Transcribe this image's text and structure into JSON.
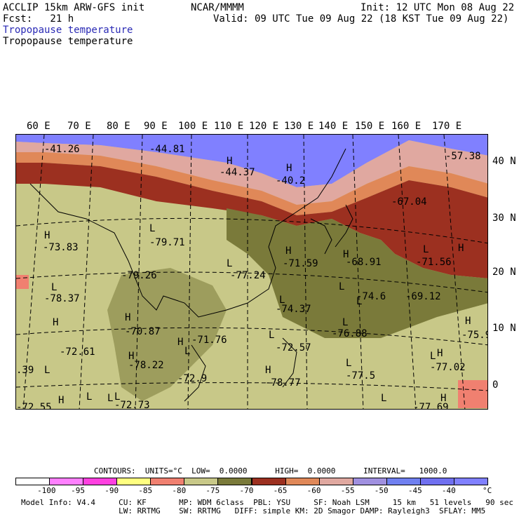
{
  "header": {
    "model_line": "ACCLIP 15km ARW-GFS init",
    "fcst_line": "Fcst:   21 h",
    "center_line": "NCAR/MMMM",
    "init_line": "Init: 12 UTC Mon 08 Aug 22",
    "valid_line": "Valid: 09 UTC Tue 09 Aug 22 (18 KST Tue 09 Aug 22)",
    "field_title_1": "Tropopause temperature",
    "field_title_2": "Tropopause temperature"
  },
  "map": {
    "lon_labels": [
      "60 E",
      "70 E",
      "80 E",
      "90 E",
      "100 E",
      "110 E",
      "120 E",
      "130 E",
      "140 E",
      "150 E",
      "160 E",
      "170 E"
    ],
    "lat_labels": [
      "40 N",
      "30 N",
      "20 N",
      "10 N",
      "0"
    ],
    "contour_values": [
      {
        "text": "-41.26"
      },
      {
        "text": "-44.81"
      },
      {
        "text": "-44.37"
      },
      {
        "text": "-40.2"
      },
      {
        "text": "-57.38"
      },
      {
        "text": "-67.04"
      },
      {
        "text": "-73.83"
      },
      {
        "text": "-79.71"
      },
      {
        "text": "-79.26"
      },
      {
        "text": "-77.24"
      },
      {
        "text": "-71.59"
      },
      {
        "text": "-68.91"
      },
      {
        "text": "-71.56"
      },
      {
        "text": "-78.37"
      },
      {
        "text": "-74.6"
      },
      {
        "text": "-69.12"
      },
      {
        "text": "-74.37"
      },
      {
        "text": "-70.87"
      },
      {
        "text": "-71.76"
      },
      {
        "text": "-76.88"
      },
      {
        "text": "-75.9"
      },
      {
        "text": "-72.61"
      },
      {
        "text": "-72.57"
      },
      {
        "text": "-78.22"
      },
      {
        "text": "-77.02"
      },
      {
        "text": "-77.5"
      },
      {
        "text": "-72.9"
      },
      {
        "text": "-78.77"
      },
      {
        "text": ".39"
      },
      {
        "text": "-72.73"
      },
      {
        "text": "-77.69"
      },
      {
        "text": "-72.55"
      }
    ],
    "extrema_markers": [
      "H",
      "H",
      "H",
      "H",
      "L",
      "H",
      "L",
      "L",
      "H",
      "L",
      "H",
      "L",
      "H",
      "L",
      "L",
      "H",
      "H",
      "L",
      "L",
      "L",
      "H",
      "L",
      "L",
      "L",
      "H",
      "L",
      "H",
      "L",
      "H",
      "L",
      "H",
      "L"
    ]
  },
  "contours_line": "CONTOURS:  UNITS=°C  LOW=  0.0000      HIGH=  0.0000      INTERVAL=   1000.0",
  "colorbar": {
    "colors": [
      "#ffffff",
      "#ff80ff",
      "#ff40e0",
      "#ffff80",
      "#f08070",
      "#c8c888",
      "#7a7a3a",
      "#9c3020",
      "#e08858",
      "#e0a8a0",
      "#a090e0",
      "#7080f0",
      "#7070f0",
      "#8080ff"
    ],
    "labels": [
      "-100",
      "-95",
      "-90",
      "-85",
      "-80",
      "-75",
      "-70",
      "-65",
      "-60",
      "-55",
      "-50",
      "-45",
      "-40"
    ],
    "unit": "°C"
  },
  "model_info": {
    "line1": "Model Info: V4.4     CU: KF       MP: WDM 6class  PBL: YSU     SF: Noah LSM     15 km   51 levels   90 sec",
    "line2": "                     LW: RRTMG    SW: RRTMG   DIFF: simple KM: 2D Smagor DAMP: Rayleigh3  SFLAY: MM5"
  }
}
